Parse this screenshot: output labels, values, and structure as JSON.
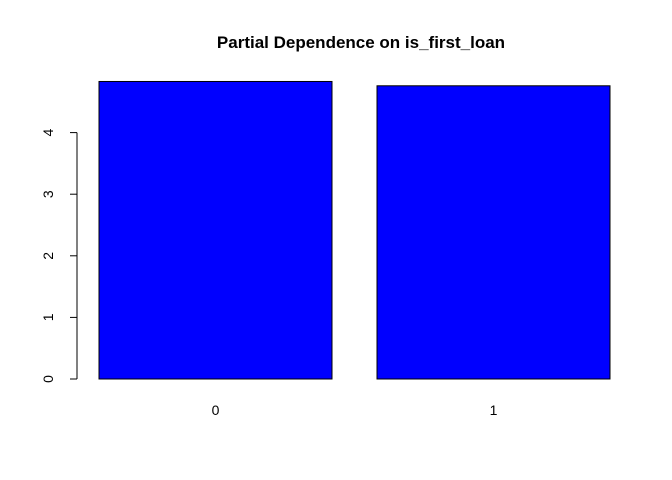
{
  "chart_data": {
    "type": "bar",
    "title": "Partial Dependence on is_first_loan",
    "xlabel": "",
    "ylabel": "",
    "categories": [
      "0",
      "1"
    ],
    "values": [
      4.83,
      4.76
    ],
    "ylim": [
      0,
      4.83
    ],
    "yticks": [
      0,
      1,
      2,
      3,
      4
    ],
    "ytick_labels": [
      "0",
      "1",
      "2",
      "3",
      "4"
    ],
    "bar_color": "#0000ff",
    "grid": false,
    "legend": "none"
  }
}
